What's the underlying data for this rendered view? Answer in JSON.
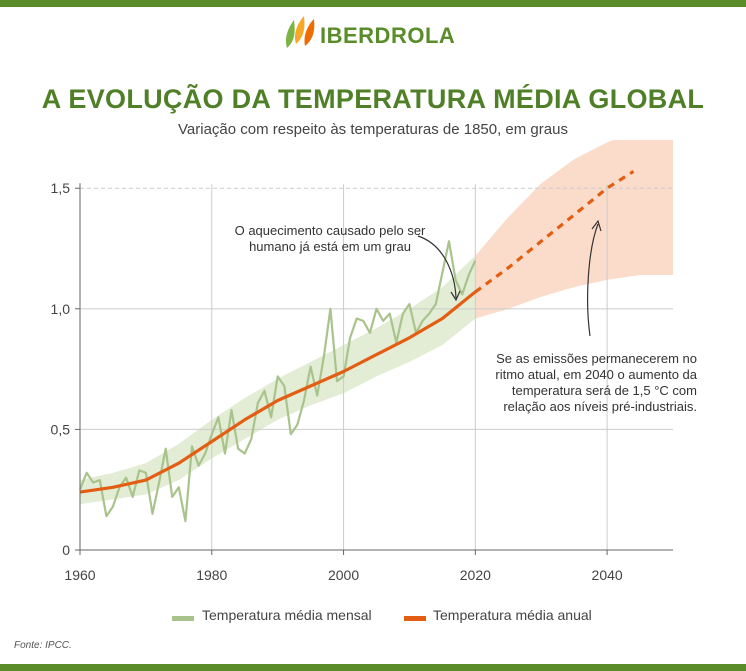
{
  "brand": {
    "name": "IBERDROLA",
    "color": "#5b8c2a"
  },
  "colors": {
    "frame": "#5b8c2a",
    "title": "#4f7f26",
    "monthly": "#a9c38c",
    "annual": "#e35d13",
    "band_observed": "#e3edd5",
    "band_projection": "#fbdccb",
    "grid": "#cccccc"
  },
  "title": "A EVOLUÇÃO DA TEMPERATURA MÉDIA GLOBAL",
  "subtitle": "Variação com respeito às temperaturas de 1850, em graus",
  "annotations": {
    "human": [
      "O aquecimento causado pelo ser",
      "humano já está em um grau"
    ],
    "projection": [
      "Se as emissões permanecerem no",
      "ritmo atual, em 2040 o aumento da",
      "temperatura será de 1,5 °C com",
      "relação aos níveis pré-industriais."
    ]
  },
  "legend": {
    "monthly": "Temperatura média mensal",
    "annual": "Temperatura média anual"
  },
  "source": "Fonte: IPCC.",
  "chart_data": {
    "type": "line",
    "xlim": [
      1960,
      2050
    ],
    "ylim": [
      0,
      1.7
    ],
    "xticks": [
      1960,
      1980,
      2000,
      2020,
      2040
    ],
    "xtick_labels": [
      "1960",
      "1980",
      "2000",
      "2020",
      "2040"
    ],
    "yticks": [
      0,
      0.5,
      1.0,
      1.5
    ],
    "ytick_labels": [
      "0",
      "0,5",
      "1,0",
      "1,5"
    ],
    "reference_line": 1.5,
    "grid": true,
    "series": [
      {
        "name": "Temperatura média anual",
        "style": "solid",
        "x": [
          1960,
          1965,
          1970,
          1975,
          1980,
          1985,
          1990,
          1995,
          2000,
          2005,
          2010,
          2015,
          2020
        ],
        "y": [
          0.24,
          0.26,
          0.29,
          0.36,
          0.45,
          0.54,
          0.62,
          0.68,
          0.74,
          0.81,
          0.88,
          0.96,
          1.07
        ]
      },
      {
        "name": "Temperatura média anual (projeção)",
        "style": "dashed",
        "x": [
          2020,
          2025,
          2030,
          2035,
          2040,
          2044
        ],
        "y": [
          1.07,
          1.17,
          1.28,
          1.39,
          1.5,
          1.57
        ]
      },
      {
        "name": "Temperatura média mensal",
        "style": "noisy",
        "x": [
          1960,
          1961,
          1962,
          1963,
          1964,
          1965,
          1966,
          1967,
          1968,
          1969,
          1970,
          1971,
          1972,
          1973,
          1974,
          1975,
          1976,
          1977,
          1978,
          1979,
          1980,
          1981,
          1982,
          1983,
          1984,
          1985,
          1986,
          1987,
          1988,
          1989,
          1990,
          1991,
          1992,
          1993,
          1994,
          1995,
          1996,
          1997,
          1998,
          1999,
          2000,
          2001,
          2002,
          2003,
          2004,
          2005,
          2006,
          2007,
          2008,
          2009,
          2010,
          2011,
          2012,
          2013,
          2014,
          2015,
          2016,
          2017,
          2018,
          2019,
          2020
        ],
        "y": [
          0.25,
          0.32,
          0.28,
          0.29,
          0.14,
          0.18,
          0.26,
          0.3,
          0.22,
          0.33,
          0.32,
          0.15,
          0.28,
          0.42,
          0.22,
          0.26,
          0.12,
          0.43,
          0.35,
          0.4,
          0.48,
          0.55,
          0.4,
          0.58,
          0.42,
          0.4,
          0.46,
          0.61,
          0.66,
          0.55,
          0.72,
          0.68,
          0.48,
          0.52,
          0.62,
          0.76,
          0.64,
          0.8,
          1.0,
          0.7,
          0.72,
          0.88,
          0.96,
          0.95,
          0.9,
          1.0,
          0.95,
          0.98,
          0.86,
          0.98,
          1.02,
          0.9,
          0.95,
          0.98,
          1.02,
          1.15,
          1.28,
          1.12,
          1.06,
          1.14,
          1.2
        ]
      }
    ],
    "bands": [
      {
        "name": "observed",
        "x": [
          1960,
          1965,
          1970,
          1975,
          1980,
          1985,
          1990,
          1995,
          2000,
          2005,
          2010,
          2015,
          2020
        ],
        "lower": [
          0.19,
          0.21,
          0.23,
          0.29,
          0.38,
          0.46,
          0.54,
          0.6,
          0.65,
          0.72,
          0.78,
          0.85,
          0.96
        ],
        "upper": [
          0.29,
          0.32,
          0.36,
          0.44,
          0.54,
          0.63,
          0.71,
          0.78,
          0.85,
          0.92,
          1.0,
          1.09,
          1.22
        ]
      },
      {
        "name": "projection",
        "x": [
          2020,
          2025,
          2030,
          2035,
          2040,
          2045,
          2050
        ],
        "lower": [
          0.96,
          1.0,
          1.05,
          1.09,
          1.12,
          1.14,
          1.14
        ],
        "upper": [
          1.22,
          1.38,
          1.52,
          1.62,
          1.69,
          1.74,
          1.75
        ]
      }
    ]
  }
}
